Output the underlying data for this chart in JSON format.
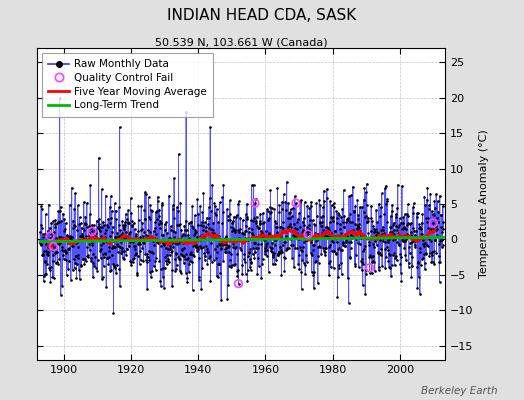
{
  "title": "INDIAN HEAD CDA, SASK",
  "subtitle": "50.539 N, 103.661 W (Canada)",
  "ylabel": "Temperature Anomaly (°C)",
  "credit": "Berkeley Earth",
  "year_start": 1893,
  "year_end": 2013,
  "ylim": [
    -17,
    27
  ],
  "yticks": [
    -15,
    -10,
    -5,
    0,
    5,
    10,
    15,
    20,
    25
  ],
  "xticks": [
    1900,
    1920,
    1940,
    1960,
    1980,
    2000
  ],
  "raw_color": "#3333ff",
  "dot_color": "#000000",
  "qc_color": "#ff44ff",
  "moving_avg_color": "#ff0000",
  "trend_color": "#00bb00",
  "bg_color": "#e0e0e0",
  "plot_bg_color": "#ffffff",
  "grid_color": "#aaaaaa",
  "seed": 42,
  "noise_std": 3.0,
  "seasonal_amplitude": 0.5,
  "moving_avg_window": 60,
  "trend_slope": 0.007
}
